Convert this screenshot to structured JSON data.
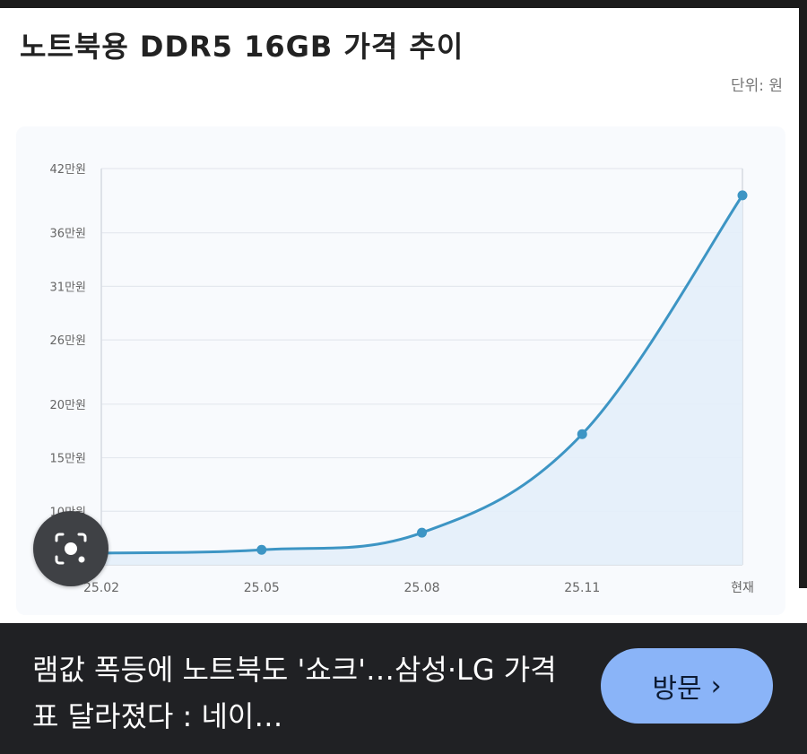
{
  "title": "노트북용 DDR5 16GB 가격 추이",
  "unit_label": "단위: 원",
  "chart_data": {
    "type": "area",
    "title": "노트북용 DDR5 16GB 가격 추이",
    "categories": [
      "25.02",
      "25.05",
      "25.08",
      "25.11",
      "현재"
    ],
    "series": [
      {
        "values": [
          61000,
          64000,
          80000,
          172000,
          395000
        ]
      }
    ],
    "y_ticks": [
      100000,
      150000,
      200000,
      260000,
      310000,
      360000,
      420000
    ],
    "y_tick_labels": [
      "10만원",
      "15만원",
      "20만원",
      "26만원",
      "31만원",
      "36만원",
      "42만원"
    ],
    "ylim": [
      50000,
      420000
    ],
    "grid": true,
    "legend": "none",
    "colors": {
      "line": "#3d95c4",
      "fill": "#e3eef9",
      "grid": "#e4e8ee"
    }
  },
  "lens": {
    "icon": "camera-search-icon"
  },
  "footer": {
    "headline": "램값 폭등에 노트북도 '쇼크'…삼성·LG 가격표 달라졌다 : 네이…",
    "visit_label": "방문",
    "visit_icon": "chevron-right-icon"
  }
}
